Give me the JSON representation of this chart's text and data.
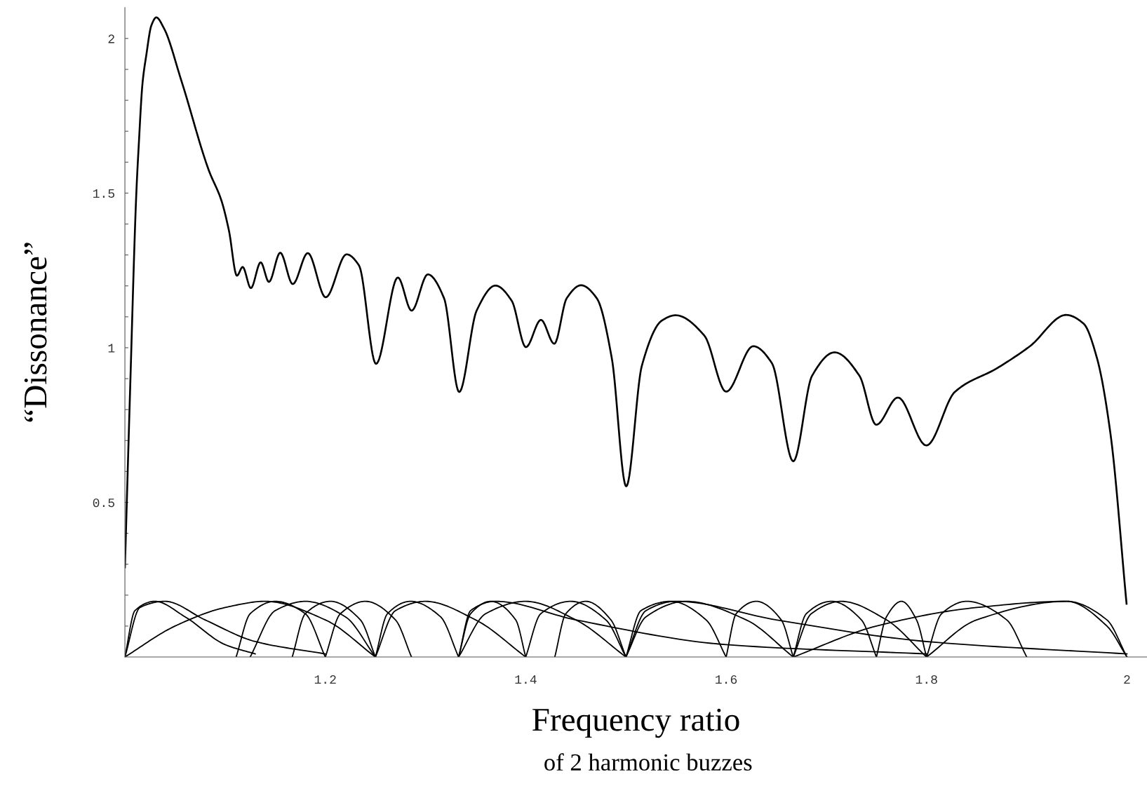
{
  "chart_data": {
    "type": "line",
    "xlabel": "Frequency ratio",
    "ylabel": "“Dissonance”",
    "annotations": [
      "of 2 harmonic buzzes"
    ],
    "xlim": [
      1,
      2.02
    ],
    "ylim": [
      0,
      2.1
    ],
    "xticks": [
      1.2,
      1.4,
      1.6,
      1.8,
      2
    ],
    "yticks": [
      {
        "value": 0.1,
        "label": null
      },
      {
        "value": 0.2,
        "label": null
      },
      {
        "value": 0.3,
        "label": null
      },
      {
        "value": 0.4,
        "label": null
      },
      0.5,
      {
        "value": 0.6,
        "label": null
      },
      {
        "value": 0.7,
        "label": null
      },
      {
        "value": 0.8,
        "label": null
      },
      {
        "value": 0.9,
        "label": null
      },
      1,
      {
        "value": 1.1,
        "label": null
      },
      {
        "value": 1.2,
        "label": null
      },
      {
        "value": 1.3,
        "label": null
      },
      {
        "value": 1.4,
        "label": null
      },
      1.5,
      {
        "value": 1.6,
        "label": null
      },
      {
        "value": 1.7,
        "label": null
      },
      {
        "value": 1.8,
        "label": null
      },
      {
        "value": 1.9,
        "label": null
      },
      2
    ],
    "grid": false,
    "series": [
      {
        "color": "#000000",
        "x": [
          1.0,
          1.0051,
          1.0114,
          1.0138,
          1.0176,
          1.0213,
          1.0264,
          1.0313,
          1.0388,
          1.0563,
          1.0838,
          1.0963,
          1.1038,
          1.1118,
          1.1175,
          1.1257,
          1.1355,
          1.1437,
          1.155,
          1.1675,
          1.1825,
          1.2004,
          1.2212,
          1.2336,
          1.2506,
          1.2724,
          1.2861,
          1.3023,
          1.3185,
          1.3336,
          1.351,
          1.3698,
          1.386,
          1.4002,
          1.4152,
          1.4285,
          1.4409,
          1.4552,
          1.4709,
          1.4859,
          1.5003,
          1.5159,
          1.5359,
          1.5496,
          1.5783,
          1.6,
          1.627,
          1.6457,
          1.667,
          1.6857,
          1.7082,
          1.7331,
          1.7498,
          1.7714,
          1.7998,
          1.8282,
          1.871,
          1.9032,
          1.9393,
          1.9567,
          1.9701,
          1.9835,
          1.9996
        ],
        "values": [
          0.29,
          0.854,
          1.5,
          1.654,
          1.856,
          1.945,
          2.042,
          2.068,
          2.034,
          1.864,
          1.573,
          1.476,
          1.379,
          1.233,
          1.261,
          1.193,
          1.276,
          1.213,
          1.307,
          1.206,
          1.306,
          1.163,
          1.302,
          1.266,
          0.948,
          1.227,
          1.12,
          1.237,
          1.16,
          0.857,
          1.12,
          1.201,
          1.152,
          1.002,
          1.09,
          1.013,
          1.16,
          1.202,
          1.16,
          0.966,
          0.552,
          0.942,
          1.088,
          1.105,
          1.039,
          0.858,
          1.005,
          0.95,
          0.633,
          0.909,
          0.985,
          0.909,
          0.751,
          0.839,
          0.684,
          0.857,
          0.935,
          1.005,
          1.106,
          1.078,
          0.966,
          0.723,
          0.172
        ]
      },
      {
        "color": "#000000",
        "x": [
          1.0,
          1.01,
          1.03,
          1.06,
          1.1,
          1.13
        ],
        "values": [
          0,
          0.15,
          0.18,
          0.13,
          0.04,
          0.01
        ]
      },
      {
        "color": "#000000",
        "x": [
          1.0,
          1.015,
          1.04,
          1.08,
          1.13,
          1.2
        ],
        "values": [
          0,
          0.16,
          0.18,
          0.12,
          0.05,
          0.01
        ]
      },
      {
        "color": "#000000",
        "x": [
          1.0,
          1.05,
          1.1,
          1.14,
          1.2,
          1.25
        ],
        "values": [
          0,
          0.1,
          0.16,
          0.18,
          0.12,
          0
        ]
      },
      {
        "color": "#000000",
        "x": [
          1.111,
          1.125,
          1.15,
          1.18,
          1.2
        ],
        "values": [
          0,
          0.14,
          0.18,
          0.14,
          0
        ]
      },
      {
        "color": "#000000",
        "x": [
          1.125,
          1.15,
          1.18,
          1.22,
          1.25
        ],
        "values": [
          0,
          0.15,
          0.18,
          0.13,
          0
        ]
      },
      {
        "color": "#000000",
        "x": [
          1.167,
          1.18,
          1.205,
          1.235,
          1.25
        ],
        "values": [
          0,
          0.14,
          0.18,
          0.12,
          0
        ]
      },
      {
        "color": "#000000",
        "x": [
          1.2,
          1.215,
          1.24,
          1.27,
          1.286
        ],
        "values": [
          0,
          0.14,
          0.18,
          0.12,
          0
        ]
      },
      {
        "color": "#000000",
        "x": [
          1.25,
          1.262,
          1.285,
          1.315,
          1.333
        ],
        "values": [
          0,
          0.14,
          0.18,
          0.13,
          0
        ]
      },
      {
        "color": "#000000",
        "x": [
          1.25,
          1.27,
          1.3,
          1.35,
          1.4
        ],
        "values": [
          0,
          0.15,
          0.18,
          0.12,
          0
        ]
      },
      {
        "color": "#000000",
        "x": [
          1.333,
          1.345,
          1.365,
          1.39,
          1.4
        ],
        "values": [
          0,
          0.14,
          0.18,
          0.12,
          0
        ]
      },
      {
        "color": "#000000",
        "x": [
          1.333,
          1.36,
          1.4,
          1.45,
          1.5
        ],
        "values": [
          0,
          0.14,
          0.18,
          0.12,
          0
        ]
      },
      {
        "color": "#000000",
        "x": [
          1.4,
          1.415,
          1.445,
          1.48,
          1.5
        ],
        "values": [
          0,
          0.14,
          0.18,
          0.12,
          0
        ]
      },
      {
        "color": "#000000",
        "x": [
          1.429,
          1.44,
          1.46,
          1.485,
          1.5
        ],
        "values": [
          0,
          0.14,
          0.18,
          0.12,
          0
        ]
      },
      {
        "color": "#000000",
        "x": [
          1.5,
          1.515,
          1.545,
          1.58,
          1.6
        ],
        "values": [
          0,
          0.15,
          0.18,
          0.12,
          0
        ]
      },
      {
        "color": "#000000",
        "x": [
          1.5,
          1.52,
          1.56,
          1.62,
          1.667
        ],
        "values": [
          0,
          0.13,
          0.18,
          0.12,
          0
        ]
      },
      {
        "color": "#000000",
        "x": [
          1.6,
          1.61,
          1.63,
          1.655,
          1.667
        ],
        "values": [
          0,
          0.14,
          0.18,
          0.12,
          0
        ]
      },
      {
        "color": "#000000",
        "x": [
          1.667,
          1.68,
          1.705,
          1.735,
          1.75
        ],
        "values": [
          0,
          0.14,
          0.18,
          0.12,
          0
        ]
      },
      {
        "color": "#000000",
        "x": [
          1.667,
          1.685,
          1.715,
          1.76,
          1.8
        ],
        "values": [
          0,
          0.14,
          0.18,
          0.12,
          0
        ]
      },
      {
        "color": "#000000",
        "x": [
          1.75,
          1.76,
          1.775,
          1.79,
          1.8
        ],
        "values": [
          0,
          0.13,
          0.18,
          0.12,
          0
        ]
      },
      {
        "color": "#000000",
        "x": [
          1.8,
          1.815,
          1.84,
          1.88,
          1.9
        ],
        "values": [
          0,
          0.14,
          0.18,
          0.12,
          0
        ]
      },
      {
        "color": "#000000",
        "x": [
          1.8,
          1.85,
          1.94,
          1.98,
          2.0
        ],
        "values": [
          0,
          0.12,
          0.18,
          0.12,
          0
        ]
      },
      {
        "color": "#000000",
        "x": [
          1.667,
          1.75,
          1.85,
          1.94,
          1.98,
          2.0
        ],
        "values": [
          0,
          0.1,
          0.16,
          0.18,
          0.1,
          0
        ]
      },
      {
        "color": "#000000",
        "x": [
          1.5,
          1.52,
          1.55,
          1.65,
          1.8,
          2.0
        ],
        "values": [
          0,
          0.15,
          0.18,
          0.12,
          0.05,
          0.01
        ]
      },
      {
        "color": "#000000",
        "x": [
          1.333,
          1.345,
          1.37,
          1.45,
          1.6,
          1.8
        ],
        "values": [
          0,
          0.15,
          0.18,
          0.12,
          0.04,
          0.01
        ]
      }
    ]
  }
}
